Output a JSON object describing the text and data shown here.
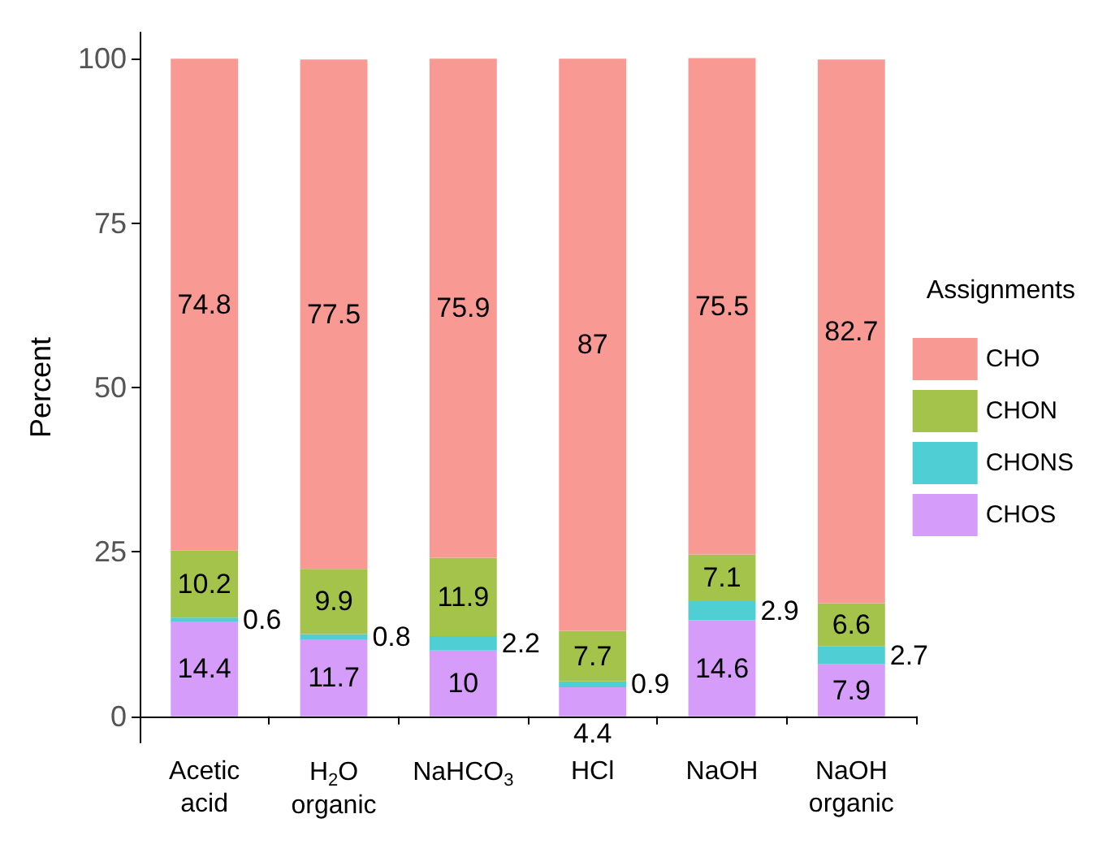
{
  "chart_data": {
    "type": "bar",
    "stacked": true,
    "ylabel": "Percent",
    "legend_title": "Assignments",
    "legend": "right",
    "categories": [
      "Acetic\nacid",
      "H$_{2}$O\norganic",
      "NaHCO$_{3}$",
      "HCl",
      "NaOH",
      "NaOH\norganic"
    ],
    "series": [
      {
        "name": "CHOS",
        "color": "#d59cf9",
        "values": [
          14.4,
          11.7,
          10,
          4.4,
          14.6,
          7.9
        ]
      },
      {
        "name": "CHONS",
        "color": "#4fcfd4",
        "values": [
          0.6,
          0.8,
          2.2,
          0.9,
          2.9,
          2.7
        ]
      },
      {
        "name": "CHON",
        "color": "#a3c34a",
        "values": [
          10.2,
          9.9,
          11.9,
          7.7,
          7.1,
          6.6
        ]
      },
      {
        "name": "CHO",
        "color": "#f99993",
        "values": [
          74.8,
          77.5,
          75.9,
          87,
          75.5,
          82.7
        ]
      }
    ],
    "ylim": [
      -4,
      104
    ],
    "yticks": [
      0,
      25,
      50,
      75,
      100
    ],
    "grid": false,
    "data_labels": true
  }
}
